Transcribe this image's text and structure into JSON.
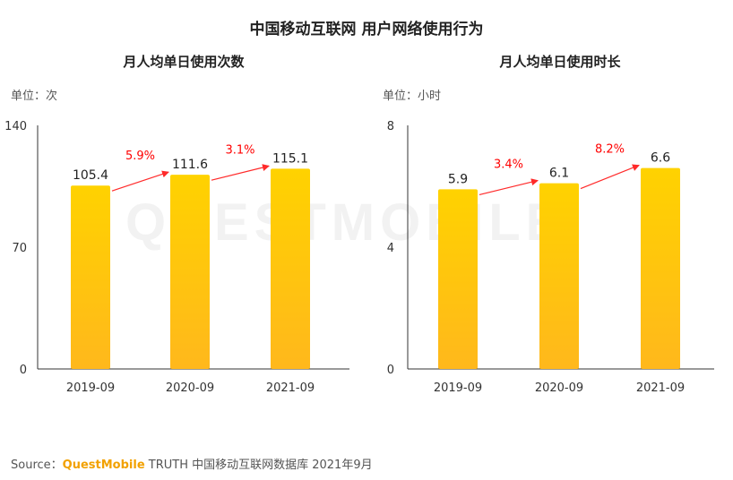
{
  "page": {
    "title": "中国移动互联网 用户网络使用行为",
    "watermark": "QUESTMOBILE",
    "source_label": "Source：",
    "source_brand": "QuestMobile",
    "source_text": " TRUTH 中国移动互联网数据库 2021年9月"
  },
  "colors": {
    "bar_top": "#ffd200",
    "bar_bottom": "#ffb81c",
    "growth_text": "#ff0000",
    "arrow": "#ff2a2a",
    "axis": "#333333"
  },
  "chart_data": [
    {
      "type": "bar",
      "title": "月人均单日使用次数",
      "unit": "单位：次",
      "categories": [
        "2019-09",
        "2020-09",
        "2021-09"
      ],
      "values": [
        105.4,
        111.6,
        115.1
      ],
      "value_labels": [
        "105.4",
        "111.6",
        "115.1"
      ],
      "growth_labels": [
        "5.9%",
        "3.1%"
      ],
      "ylim": [
        0,
        140
      ],
      "yticks": [
        0,
        70,
        140
      ],
      "ytick_labels": [
        "0",
        "70",
        "140"
      ]
    },
    {
      "type": "bar",
      "title": "月人均单日使用时长",
      "unit": "单位：小时",
      "categories": [
        "2019-09",
        "2020-09",
        "2021-09"
      ],
      "values": [
        5.9,
        6.1,
        6.6
      ],
      "value_labels": [
        "5.9",
        "6.1",
        "6.6"
      ],
      "growth_labels": [
        "3.4%",
        "8.2%"
      ],
      "ylim": [
        0,
        8
      ],
      "yticks": [
        0,
        4,
        8
      ],
      "ytick_labels": [
        "0",
        "4",
        "8"
      ]
    }
  ]
}
